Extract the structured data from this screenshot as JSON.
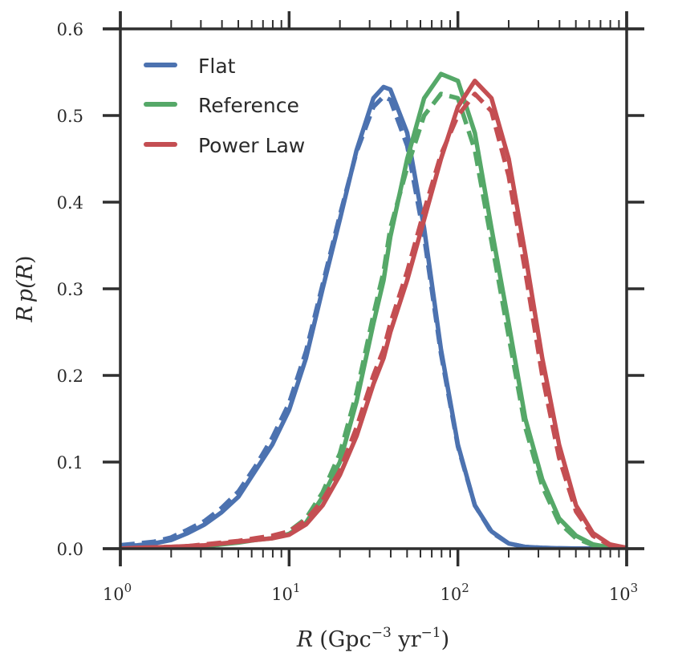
{
  "chart_data": {
    "type": "line",
    "title": "",
    "xlabel": "R (Gpc^-3 yr^-1)",
    "xlabel_parts": {
      "var": "R",
      "unit_open": "(Gpc",
      "exp1": "−3",
      "mid": " yr",
      "exp2": "−1",
      "close": ")"
    },
    "ylabel": "R p(R)",
    "ylabel_parts": {
      "var": "R",
      "mid": "p(",
      "var2": "R",
      "close": ")"
    },
    "xscale": "log",
    "xlim": [
      1,
      1000
    ],
    "ylim": [
      0.0,
      0.6
    ],
    "xticks": [
      {
        "value": 1,
        "base": "10",
        "exp": "0"
      },
      {
        "value": 10,
        "base": "10",
        "exp": "1"
      },
      {
        "value": 100,
        "base": "10",
        "exp": "2"
      },
      {
        "value": 1000,
        "base": "10",
        "exp": "3"
      }
    ],
    "yticks": [
      {
        "value": 0.0,
        "label": "0.0"
      },
      {
        "value": 0.1,
        "label": "0.1"
      },
      {
        "value": 0.2,
        "label": "0.2"
      },
      {
        "value": 0.3,
        "label": "0.3"
      },
      {
        "value": 0.4,
        "label": "0.4"
      },
      {
        "value": 0.5,
        "label": "0.5"
      },
      {
        "value": 0.6,
        "label": "0.6"
      }
    ],
    "grid": false,
    "legend": {
      "placement": "top-left",
      "entries": [
        "Flat",
        "Reference",
        "Power Law"
      ]
    },
    "x": [
      1.0,
      1.26,
      1.58,
      2.0,
      2.51,
      3.16,
      3.98,
      5.01,
      6.31,
      7.94,
      10.0,
      12.6,
      15.8,
      20.0,
      25.1,
      31.6,
      36.3,
      39.8,
      50.1,
      63.1,
      79.4,
      100,
      126,
      158,
      200,
      251,
      316,
      398,
      501,
      631,
      794,
      1000
    ],
    "series": [
      {
        "name": "Flat",
        "style": "solid",
        "color": "#4c72b0",
        "values": [
          0.003,
          0.004,
          0.006,
          0.01,
          0.018,
          0.028,
          0.042,
          0.06,
          0.09,
          0.12,
          0.16,
          0.22,
          0.3,
          0.38,
          0.46,
          0.52,
          0.533,
          0.53,
          0.48,
          0.37,
          0.23,
          0.12,
          0.05,
          0.02,
          0.006,
          0.002,
          0.001,
          0.0005,
          0.0002,
          0.0001,
          0.0,
          0.0
        ]
      },
      {
        "name": "Flat (dashed)",
        "style": "dashed",
        "color": "#4c72b0",
        "values": [
          0.004,
          0.006,
          0.008,
          0.013,
          0.022,
          0.032,
          0.047,
          0.066,
          0.095,
          0.128,
          0.168,
          0.228,
          0.305,
          0.385,
          0.458,
          0.51,
          0.522,
          0.518,
          0.465,
          0.36,
          0.225,
          0.118,
          0.05,
          0.019,
          0.006,
          0.002,
          0.001,
          0.0005,
          0.0002,
          0.0001,
          0.0,
          0.0
        ]
      },
      {
        "name": "Reference",
        "style": "solid",
        "color": "#55a868",
        "values": [
          0.0,
          0.0,
          0.0005,
          0.001,
          0.002,
          0.003,
          0.005,
          0.007,
          0.01,
          0.012,
          0.017,
          0.03,
          0.06,
          0.1,
          0.17,
          0.26,
          0.31,
          0.36,
          0.45,
          0.52,
          0.548,
          0.54,
          0.48,
          0.37,
          0.26,
          0.15,
          0.08,
          0.035,
          0.015,
          0.005,
          0.0015,
          0.0
        ]
      },
      {
        "name": "Reference (dashed)",
        "style": "dashed",
        "color": "#55a868",
        "values": [
          0.0,
          0.0,
          0.0005,
          0.001,
          0.002,
          0.003,
          0.005,
          0.008,
          0.011,
          0.014,
          0.02,
          0.035,
          0.065,
          0.11,
          0.18,
          0.27,
          0.32,
          0.37,
          0.44,
          0.5,
          0.525,
          0.52,
          0.46,
          0.355,
          0.245,
          0.14,
          0.072,
          0.03,
          0.012,
          0.004,
          0.001,
          0.0
        ]
      },
      {
        "name": "Power Law",
        "style": "solid",
        "color": "#c44e52",
        "values": [
          0.0,
          0.001,
          0.0015,
          0.002,
          0.003,
          0.004,
          0.006,
          0.008,
          0.01,
          0.012,
          0.016,
          0.028,
          0.05,
          0.085,
          0.13,
          0.19,
          0.22,
          0.25,
          0.31,
          0.38,
          0.45,
          0.51,
          0.54,
          0.52,
          0.45,
          0.34,
          0.22,
          0.12,
          0.05,
          0.018,
          0.005,
          0.001
        ]
      },
      {
        "name": "Power Law (dashed)",
        "style": "dashed",
        "color": "#c44e52",
        "values": [
          0.0,
          0.001,
          0.0015,
          0.002,
          0.003,
          0.005,
          0.007,
          0.009,
          0.012,
          0.015,
          0.02,
          0.033,
          0.056,
          0.09,
          0.14,
          0.2,
          0.23,
          0.26,
          0.32,
          0.39,
          0.455,
          0.5,
          0.525,
          0.505,
          0.43,
          0.32,
          0.2,
          0.105,
          0.043,
          0.015,
          0.004,
          0.001
        ]
      }
    ]
  }
}
